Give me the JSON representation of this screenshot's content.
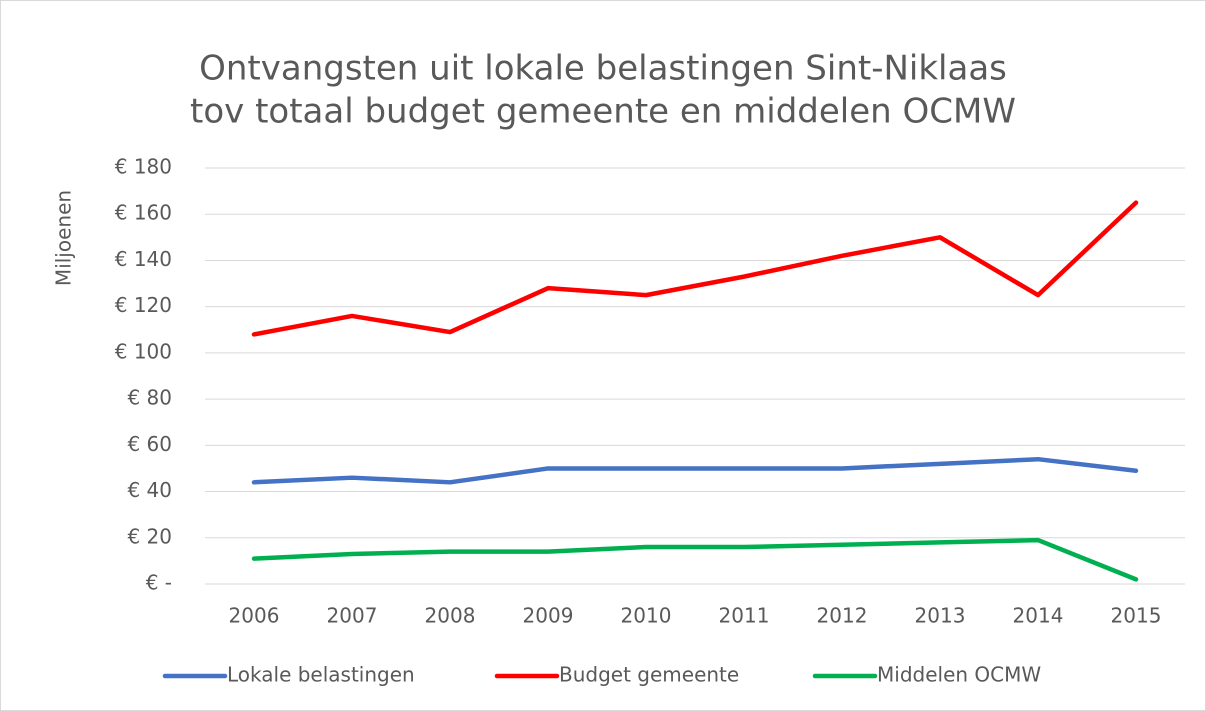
{
  "chart_data": {
    "type": "line",
    "title": [
      "Ontvangsten uit lokale belastingen Sint-Niklaas",
      "tov totaal budget gemeente en middelen OCMW"
    ],
    "ylabel": "Miljoenen",
    "categories": [
      "2006",
      "2007",
      "2008",
      "2009",
      "2010",
      "2011",
      "2012",
      "2013",
      "2014",
      "2015"
    ],
    "series": [
      {
        "name": "Lokale belastingen",
        "color": "#4472c4",
        "values": [
          44,
          46,
          44,
          50,
          50,
          50,
          50,
          52,
          54,
          49
        ]
      },
      {
        "name": "Budget gemeente",
        "color": "#ff0000",
        "values": [
          108,
          116,
          109,
          128,
          125,
          133,
          142,
          150,
          125,
          165
        ]
      },
      {
        "name": "Middelen OCMW",
        "color": "#00b050",
        "values": [
          11,
          13,
          14,
          14,
          16,
          16,
          17,
          18,
          19,
          2
        ]
      }
    ],
    "ylim": [
      0,
      180
    ],
    "yticks": [
      {
        "value": 0,
        "label": "€ -"
      },
      {
        "value": 20,
        "label": "€ 20"
      },
      {
        "value": 40,
        "label": "€ 40"
      },
      {
        "value": 60,
        "label": "€ 60"
      },
      {
        "value": 80,
        "label": "€ 80"
      },
      {
        "value": 100,
        "label": "€ 100"
      },
      {
        "value": 120,
        "label": "€ 120"
      },
      {
        "value": 140,
        "label": "€ 140"
      },
      {
        "value": 160,
        "label": "€ 160"
      },
      {
        "value": 180,
        "label": "€ 180"
      }
    ],
    "grid": true,
    "legend": "bottom"
  }
}
